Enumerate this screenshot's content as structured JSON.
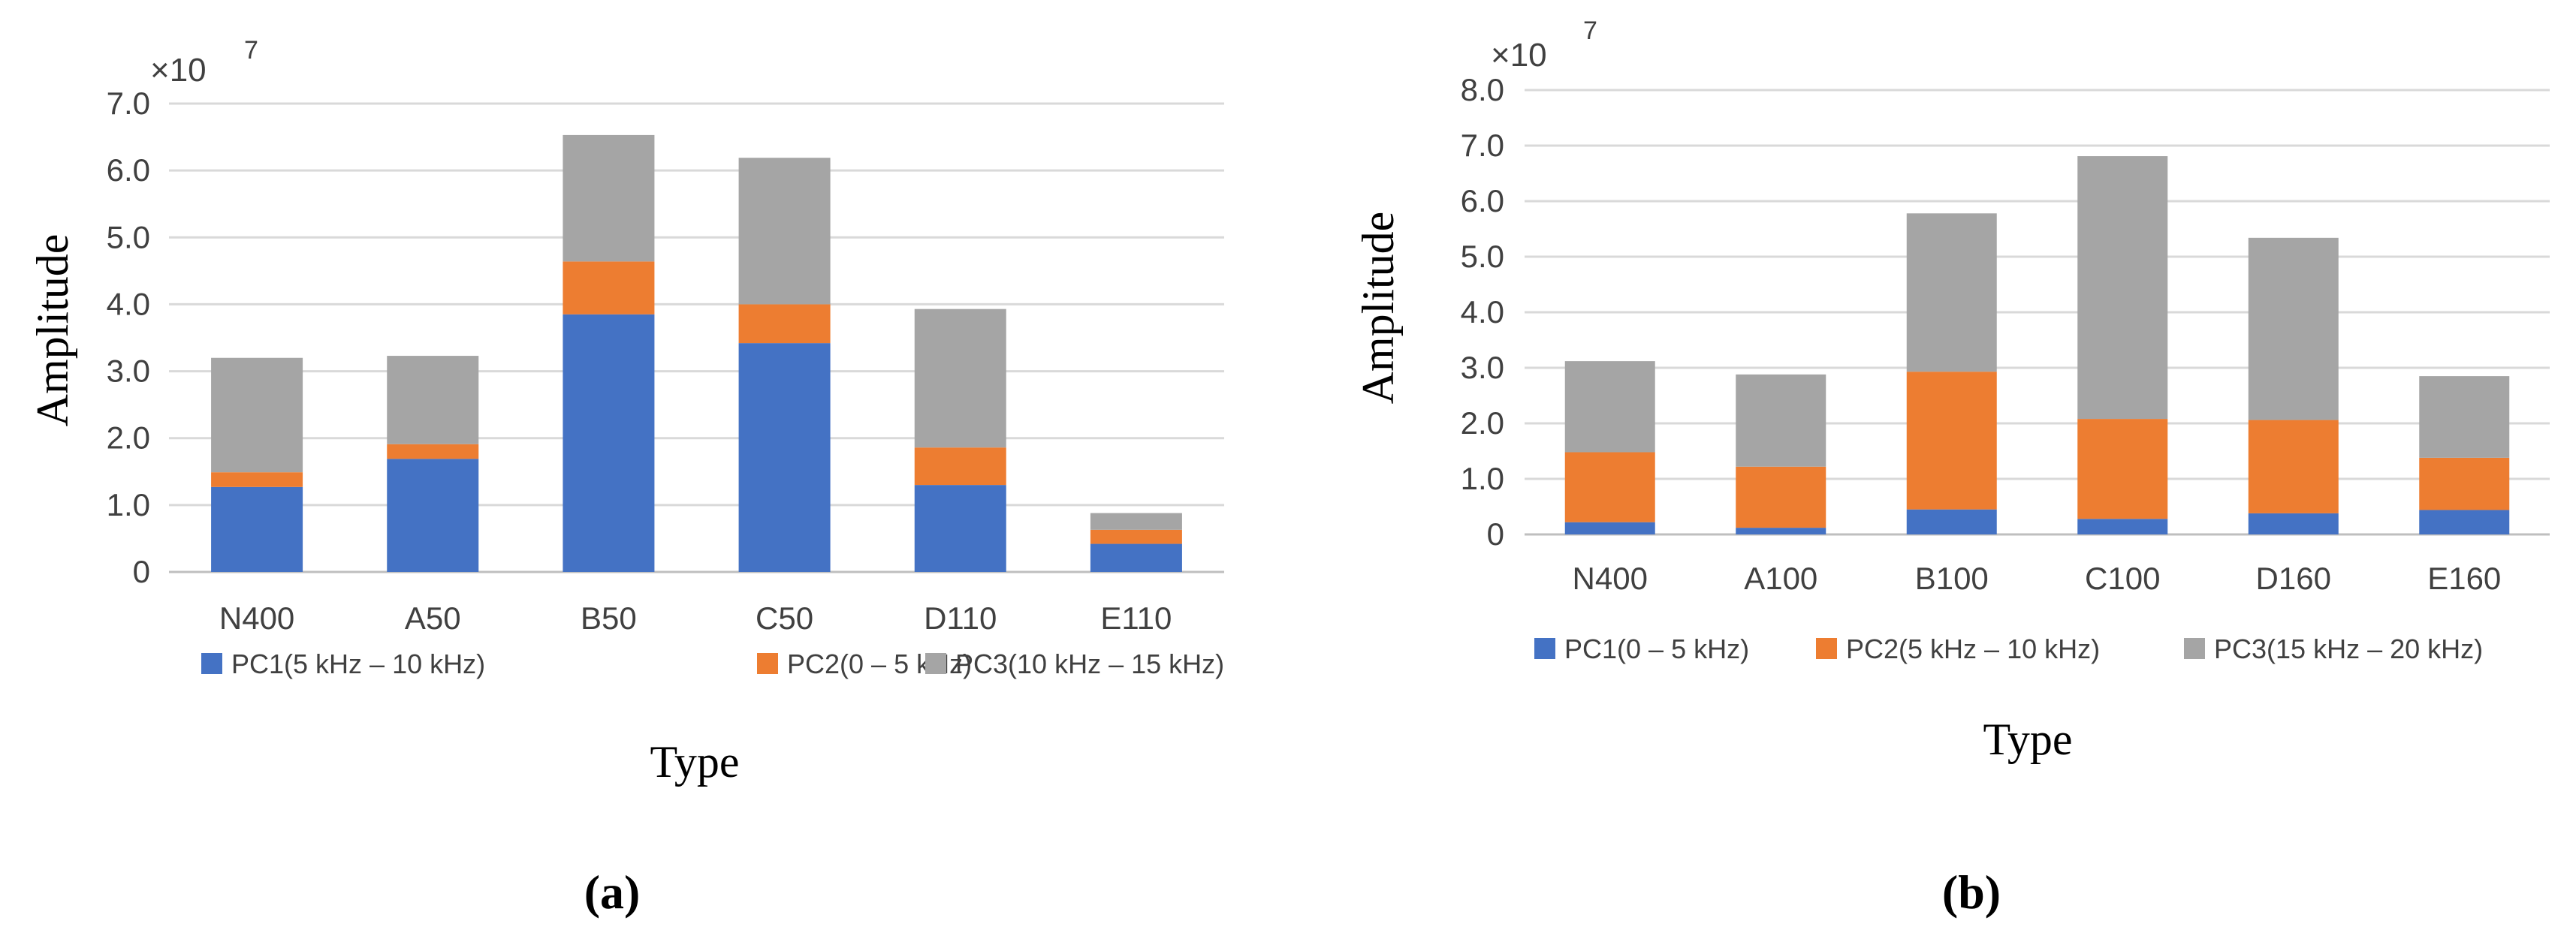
{
  "figure": {
    "panel_a_label": "(a)",
    "panel_b_label": "(b)"
  },
  "colors": {
    "pc1": "#4472C4",
    "pc2": "#ED7D31",
    "pc3": "#A5A5A5",
    "grid": "#D9D9D9",
    "axis": "#BFBFBF",
    "text": "#404040"
  },
  "chart_data": [
    {
      "type": "bar",
      "stacked": true,
      "panel": "(a)",
      "title": "",
      "xlabel": "Type",
      "ylabel": "Amplitude",
      "y_multiplier": "×10",
      "y_exponent": "7",
      "ylim": [
        0,
        7
      ],
      "yticks": [
        "0",
        "1.0",
        "2.0",
        "3.0",
        "4.0",
        "5.0",
        "6.0",
        "7.0"
      ],
      "categories": [
        "N400",
        "A50",
        "B50",
        "C50",
        "D110",
        "E110"
      ],
      "series": [
        {
          "name": "PC1(5 kHz – 10 kHz)",
          "values": [
            1.27,
            1.69,
            3.85,
            3.42,
            1.3,
            0.42
          ]
        },
        {
          "name": "PC2(0 – 5 kHz)",
          "values": [
            0.22,
            0.22,
            0.79,
            0.58,
            0.56,
            0.21
          ]
        },
        {
          "name": "PC3(10 kHz – 15 kHz)",
          "values": [
            1.71,
            1.32,
            1.89,
            2.19,
            2.07,
            0.25
          ]
        }
      ],
      "legend": "bottom"
    },
    {
      "type": "bar",
      "stacked": true,
      "panel": "(b)",
      "title": "",
      "xlabel": "Type",
      "ylabel": "Amplitude",
      "y_multiplier": "×10",
      "y_exponent": "7",
      "ylim": [
        0,
        8
      ],
      "yticks": [
        "0",
        "1.0",
        "2.0",
        "3.0",
        "4.0",
        "5.0",
        "6.0",
        "7.0",
        "8.0"
      ],
      "categories": [
        "N400",
        "A100",
        "B100",
        "C100",
        "D160",
        "E160"
      ],
      "series": [
        {
          "name": "PC1(0 – 5 kHz)",
          "values": [
            0.22,
            0.12,
            0.45,
            0.28,
            0.38,
            0.44
          ]
        },
        {
          "name": "PC2(5 kHz – 10 kHz)",
          "values": [
            1.26,
            1.1,
            2.48,
            1.8,
            1.68,
            0.94
          ]
        },
        {
          "name": "PC3(15 kHz – 20 kHz)",
          "values": [
            1.64,
            1.66,
            2.85,
            4.73,
            3.28,
            1.47
          ]
        }
      ],
      "legend": "bottom"
    }
  ]
}
